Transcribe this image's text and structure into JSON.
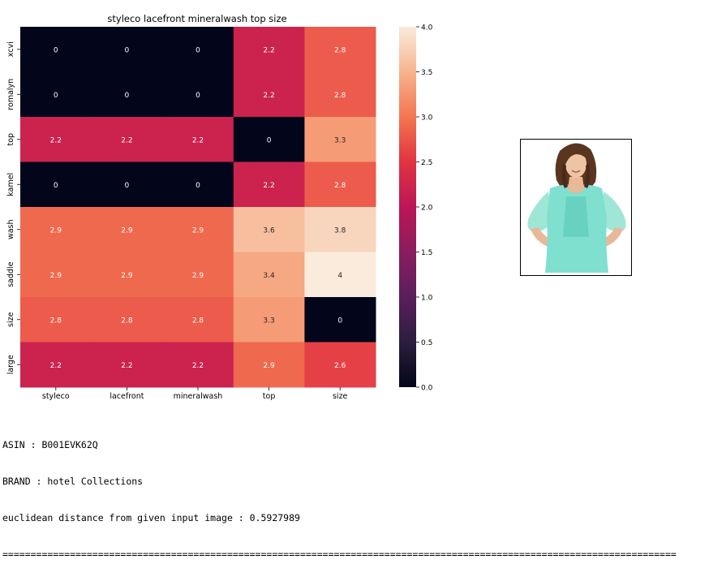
{
  "chart_data": {
    "type": "heatmap",
    "title": "styleco lacefront mineralwash top size",
    "x_labels": [
      "styleco",
      "lacefront",
      "mineralwash",
      "top",
      "size"
    ],
    "y_labels": [
      "xcvi",
      "romalyn",
      "top",
      "kamel",
      "wash",
      "saddle",
      "size",
      "large"
    ],
    "values": [
      [
        0,
        0,
        0,
        2.2,
        2.8
      ],
      [
        0,
        0,
        0,
        2.2,
        2.8
      ],
      [
        2.2,
        2.2,
        2.2,
        0,
        3.3
      ],
      [
        0,
        0,
        0,
        2.2,
        2.8
      ],
      [
        2.9,
        2.9,
        2.9,
        3.6,
        3.8
      ],
      [
        2.9,
        2.9,
        2.9,
        3.4,
        4
      ],
      [
        2.8,
        2.8,
        2.8,
        3.3,
        0
      ],
      [
        2.2,
        2.2,
        2.2,
        2.9,
        2.6
      ]
    ],
    "colorbar": {
      "range": [
        0,
        4.0
      ],
      "ticks": [
        "0.0",
        "0.5",
        "1.0",
        "1.5",
        "2.0",
        "2.5",
        "3.0",
        "3.5",
        "4.0"
      ],
      "colormap": "rocket"
    }
  },
  "product": {
    "image": "woman-in-mint-peasant-top",
    "colors": {
      "top": "#7fe0cf",
      "hair": "#5a3520",
      "skin": "#e8b898"
    }
  },
  "info": {
    "asin": "ASIN : B001EVK62Q",
    "brand": "BRAND : hotel Collections",
    "distance": "euclidean distance from given input image : 0.5927989",
    "separator": "========================================================================================================================"
  }
}
